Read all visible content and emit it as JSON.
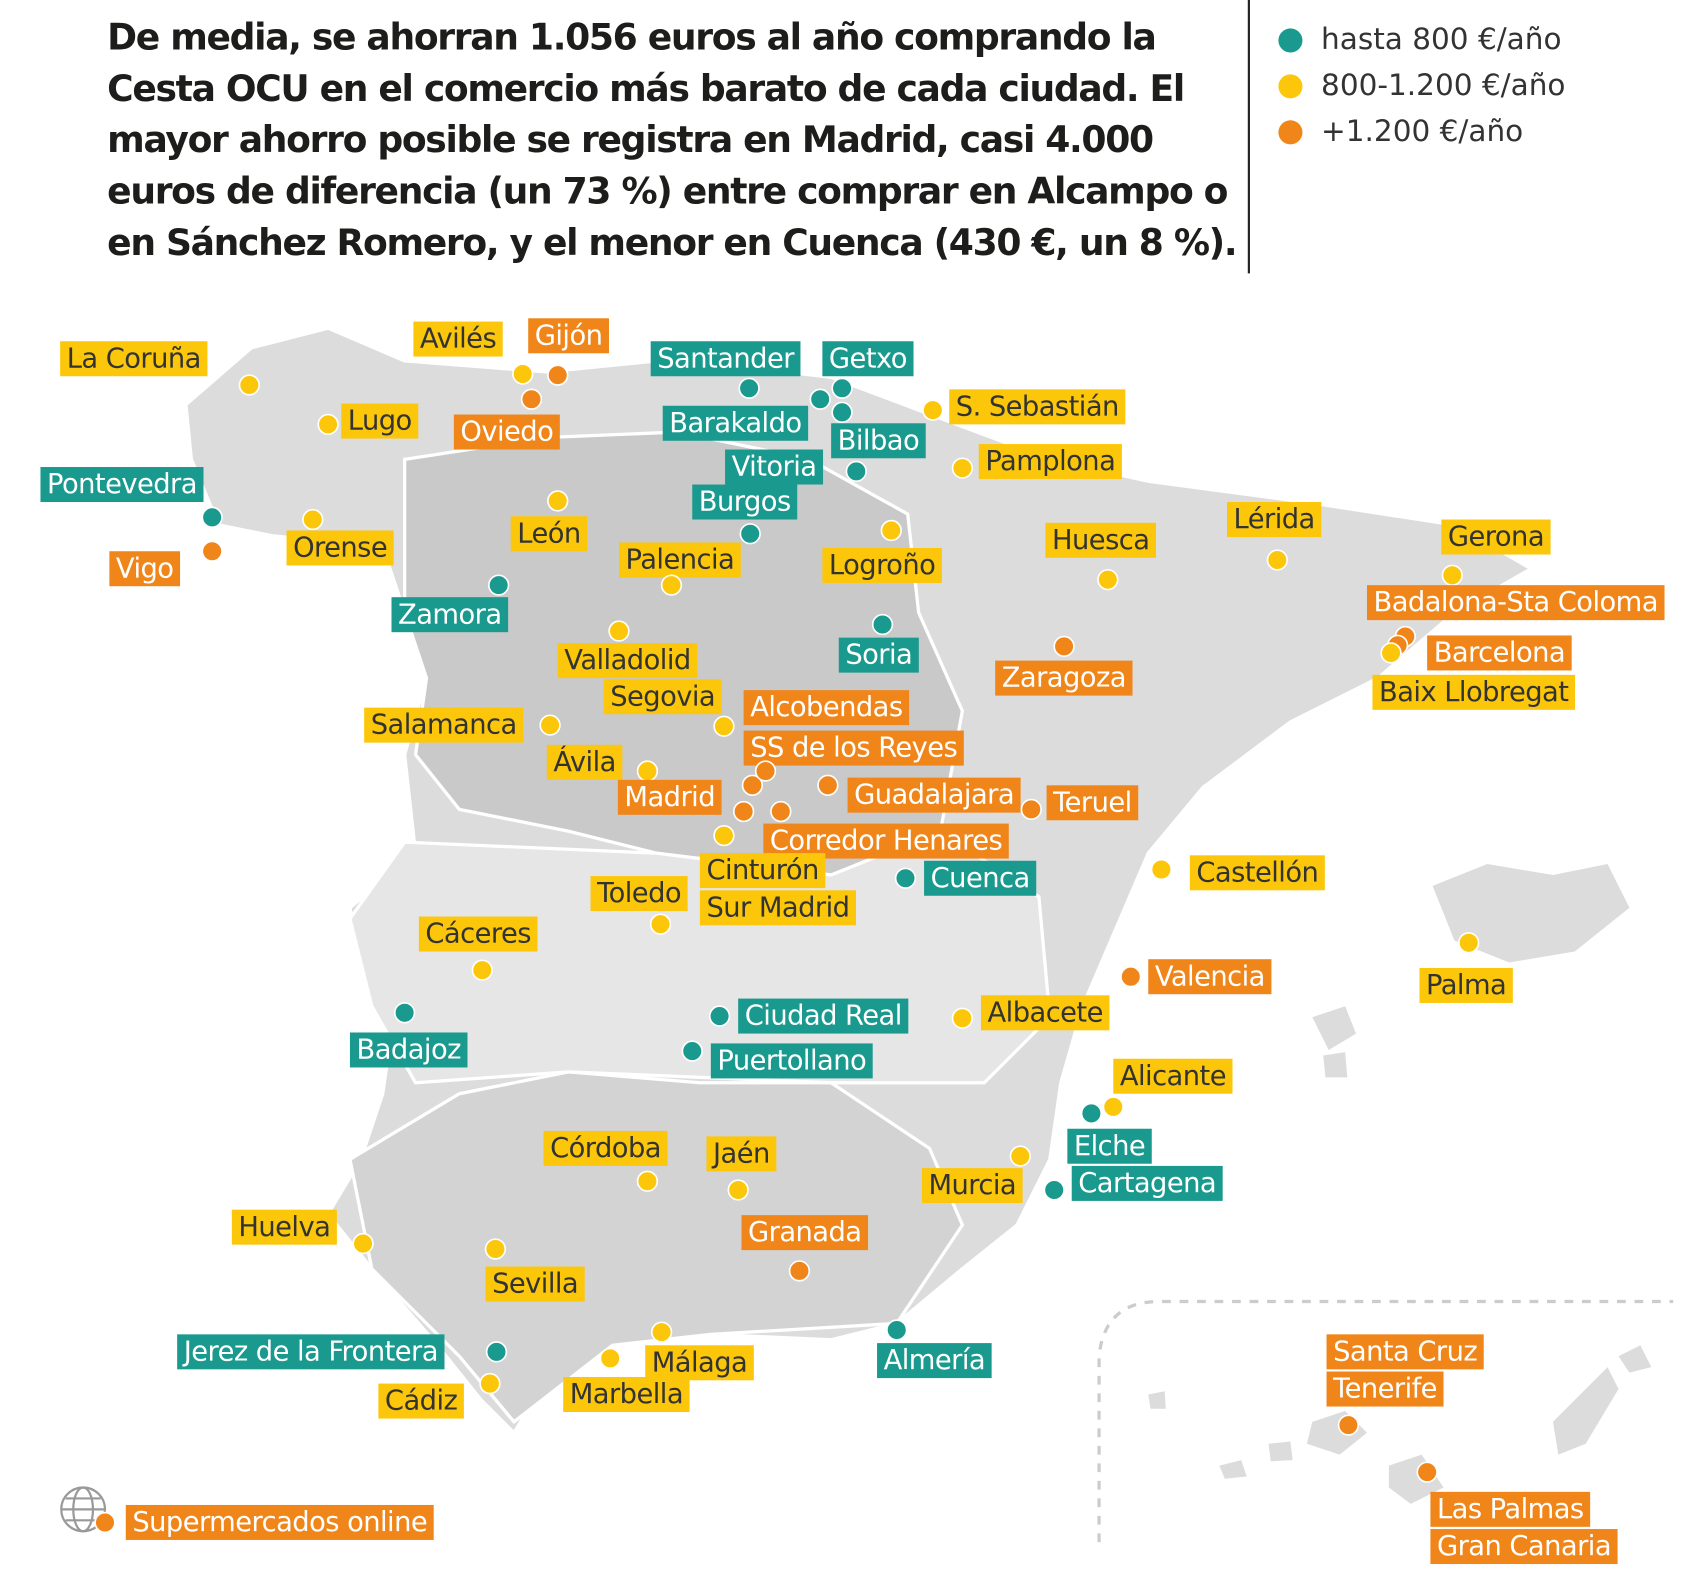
{
  "header": {
    "title": [
      "De media, se ahorran 1.056 euros al año comprando la",
      "Cesta OCU en el comercio más barato de cada ciudad. El",
      "mayor ahorro posible se registra en Madrid, casi 4.000",
      "euros de diferencia (un 73 %) entre comprar en Alcampo o",
      "en Sánchez Romero, y el menor en Cuenca (430 €, un 8 %)."
    ]
  },
  "legend": [
    {
      "name": "hasta 800 €/año",
      "color": "#1a9a8e"
    },
    {
      "name": "800-1.200 €/año",
      "color": "#fcc70a"
    },
    {
      "name": "+1.200 €/año",
      "color": "#f0861a"
    }
  ],
  "cities": [
    {
      "label": [
        "La Coruña"
      ],
      "color": "#fcc70a"
    },
    {
      "label": [
        "Avilés"
      ],
      "color": "#fcc70a"
    },
    {
      "label": [
        "Gijón"
      ],
      "color": "#f0861a"
    },
    {
      "label": [
        "Oviedo"
      ],
      "color": "#f0861a"
    },
    {
      "label": [
        "Lugo"
      ],
      "color": "#fcc70a"
    },
    {
      "label": [
        "Santander"
      ],
      "color": "#1a9a8e"
    },
    {
      "label": [
        "Getxo"
      ],
      "color": "#1a9a8e"
    },
    {
      "label": [
        "Barakaldo"
      ],
      "color": "#1a9a8e"
    },
    {
      "label": [
        "Bilbao"
      ],
      "color": "#1a9a8e"
    },
    {
      "label": [
        "S. Sebastián"
      ],
      "color": "#fcc70a"
    },
    {
      "label": [
        "Vitoria"
      ],
      "color": "#1a9a8e"
    },
    {
      "label": [
        "Pamplona"
      ],
      "color": "#fcc70a"
    },
    {
      "label": [
        "Pontevedra"
      ],
      "color": "#1a9a8e"
    },
    {
      "label": [
        "Vigo"
      ],
      "color": "#f0861a"
    },
    {
      "label": [
        "Orense"
      ],
      "color": "#fcc70a"
    },
    {
      "label": [
        "León"
      ],
      "color": "#fcc70a"
    },
    {
      "label": [
        "Burgos"
      ],
      "color": "#1a9a8e"
    },
    {
      "label": [
        "Palencia"
      ],
      "color": "#fcc70a"
    },
    {
      "label": [
        "Logroño"
      ],
      "color": "#fcc70a"
    },
    {
      "label": [
        "Huesca"
      ],
      "color": "#fcc70a"
    },
    {
      "label": [
        "Lérida"
      ],
      "color": "#fcc70a"
    },
    {
      "label": [
        "Gerona"
      ],
      "color": "#fcc70a"
    },
    {
      "label": [
        "Badalona-Sta Coloma"
      ],
      "color": "#f0861a"
    },
    {
      "label": [
        "Barcelona"
      ],
      "color": "#f0861a"
    },
    {
      "label": [
        "Baix Llobregat"
      ],
      "color": "#fcc70a"
    },
    {
      "label": [
        "Zamora"
      ],
      "color": "#1a9a8e"
    },
    {
      "label": [
        "Soria"
      ],
      "color": "#1a9a8e"
    },
    {
      "label": [
        "Zaragoza"
      ],
      "color": "#f0861a"
    },
    {
      "label": [
        "Valladolid"
      ],
      "color": "#fcc70a"
    },
    {
      "label": [
        "Segovia"
      ],
      "color": "#fcc70a"
    },
    {
      "label": [
        "Alcobendas"
      ],
      "color": "#f0861a"
    },
    {
      "label": [
        "Salamanca"
      ],
      "color": "#fcc70a"
    },
    {
      "label": [
        "Ávila"
      ],
      "color": "#fcc70a"
    },
    {
      "label": [
        "Madrid"
      ],
      "color": "#f0861a"
    },
    {
      "label": [
        "Guadalajara"
      ],
      "color": "#f0861a"
    },
    {
      "label": [
        "Teruel"
      ],
      "color": "#f0861a"
    },
    {
      "label": [
        "Corredor Henares"
      ],
      "color": "#f0861a"
    },
    {
      "label": [
        "Cinturón",
        "Sur Madrid"
      ],
      "color": "#fcc70a"
    },
    {
      "label": [
        "Toledo"
      ],
      "color": "#fcc70a"
    },
    {
      "label": [
        "Cuenca"
      ],
      "color": "#1a9a8e"
    },
    {
      "label": [
        "Castellón"
      ],
      "color": "#fcc70a"
    },
    {
      "label": [
        "Cáceres"
      ],
      "color": "#fcc70a"
    },
    {
      "label": [
        "Valencia"
      ],
      "color": "#f0861a"
    },
    {
      "label": [
        "Palma"
      ],
      "color": "#fcc70a"
    },
    {
      "label": [
        "Badajoz"
      ],
      "color": "#1a9a8e"
    },
    {
      "label": [
        "Ciudad Real"
      ],
      "color": "#1a9a8e"
    },
    {
      "label": [
        "Albacete"
      ],
      "color": "#fcc70a"
    },
    {
      "label": [
        "Puertollano"
      ],
      "color": "#1a9a8e"
    },
    {
      "label": [
        "Alicante"
      ],
      "color": "#fcc70a"
    },
    {
      "label": [
        "Elche"
      ],
      "color": "#1a9a8e"
    },
    {
      "label": [
        "Córdoba"
      ],
      "color": "#fcc70a"
    },
    {
      "label": [
        "Jaén"
      ],
      "color": "#fcc70a"
    },
    {
      "label": [
        "Murcia"
      ],
      "color": "#fcc70a"
    },
    {
      "label": [
        "Cartagena"
      ],
      "color": "#1a9a8e"
    },
    {
      "label": [
        "Huelva"
      ],
      "color": "#fcc70a"
    },
    {
      "label": [
        "Granada"
      ],
      "color": "#f0861a"
    },
    {
      "label": [
        "Sevilla"
      ],
      "color": "#fcc70a"
    },
    {
      "label": [
        "Jerez de la Frontera"
      ],
      "color": "#1a9a8e"
    },
    {
      "label": [
        "Almería"
      ],
      "color": "#1a9a8e"
    },
    {
      "label": [
        "Málaga"
      ],
      "color": "#fcc70a"
    },
    {
      "label": [
        "Marbella"
      ],
      "color": "#fcc70a"
    },
    {
      "label": [
        "Cádiz"
      ],
      "color": "#fcc70a"
    },
    {
      "label": [
        "SS de los Reyes"
      ],
      "color": "#f0861a"
    },
    {
      "label": [
        "Santa Cruz",
        "Tenerife"
      ],
      "color": "#f0861a"
    },
    {
      "label": [
        "Las Palmas",
        "Gran Canaria"
      ],
      "color": "#f0861a"
    },
    {
      "label": [
        "Supermercados online"
      ],
      "color": "#f0861a"
    }
  ]
}
